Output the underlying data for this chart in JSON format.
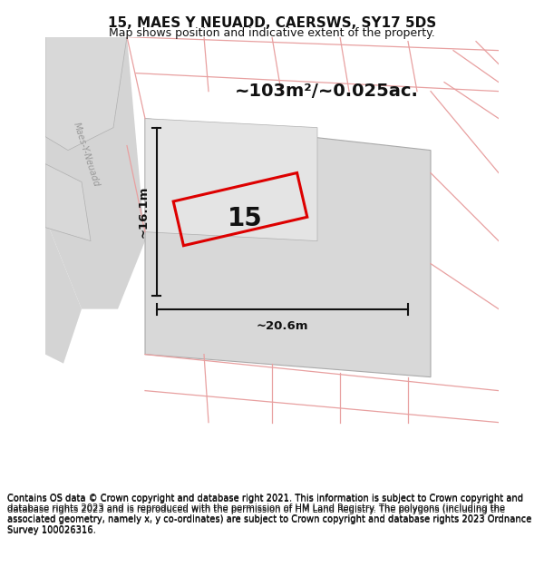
{
  "title": "15, MAES Y NEUADD, CAERSWS, SY17 5DS",
  "subtitle": "Map shows position and indicative extent of the property.",
  "footer": "Contains OS data © Crown copyright and database right 2021. This information is subject to Crown copyright and database rights 2023 and is reproduced with the permission of HM Land Registry. The polygons (including the associated geometry, namely x, y co-ordinates) are subject to Crown copyright and database rights 2023 Ordnance Survey 100026316.",
  "area_label": "~103m²/~0.025ac.",
  "width_label": "~20.6m",
  "height_label": "~16.1m",
  "plot_number": "15",
  "title_fontsize": 11,
  "subtitle_fontsize": 9,
  "footer_fontsize": 7.2,
  "title_color": "#111111",
  "map_bg": "#f0f0f0",
  "road_color": "#d0d0d0",
  "parcel_color": "#d8d8d8",
  "parcel_edge": "#aaaaaa",
  "pink": "#e8a0a0",
  "red": "#dd0000",
  "dim_color": "#111111",
  "street_color": "#999999"
}
